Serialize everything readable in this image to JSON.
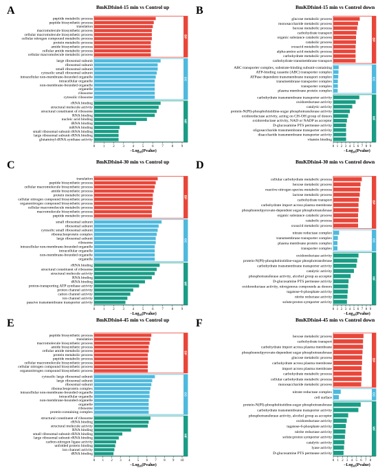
{
  "colors": {
    "BP": "#e8463a",
    "CC": "#4fb9dd",
    "MF": "#1a9c86",
    "axis": "#333333"
  },
  "chart_data": [
    {
      "panel": "A",
      "title": "BmKDfsin4-15 min vs Control up",
      "type": "bar",
      "orientation": "horizontal",
      "xlabel_main": "−Log",
      "xlabel_sub": "10",
      "xlabel_tail": "(Pvalue)",
      "xlim": [
        0,
        9
      ],
      "xticks": [
        0,
        1,
        2,
        3,
        4,
        5,
        6,
        7,
        8,
        9
      ],
      "groups": [
        {
          "name": "BP",
          "terms": [
            "peptide metabolic process",
            "peptide biosynthetic process",
            "translation",
            "macromolecule biosynthetic process",
            "cellular macromolecule biosynthetic process",
            "cellular nitrogen compound metabolic process",
            "protein metabolic process",
            "amide biosynthetic process",
            "cellular amide metabolic process",
            "cellular macromolecule metabolic process"
          ],
          "values": [
            6.3,
            6.1,
            6.0,
            5.9,
            5.9,
            5.9,
            5.8,
            5.8,
            5.8,
            5.8
          ]
        },
        {
          "name": "CC",
          "terms": [
            "large ribosomal subunit",
            "ribosomal subunit",
            "small ribosomal subunit",
            "cytosolic small ribosomal subunit",
            "intracellular non-membrane-bounded organelle",
            "intracellular organelle",
            "non-membrane-bounded organelle",
            "organelle",
            "ribosome",
            "cytosolic ribosome"
          ],
          "values": [
            6.8,
            6.5,
            6.5,
            6.4,
            6.3,
            6.2,
            6.2,
            6.2,
            6.2,
            6.2
          ]
        },
        {
          "name": "MF",
          "terms": [
            "rRNA binding",
            "structural molecule activity",
            "structural constituent of ribosome",
            "RNA binding",
            "nucleic acid binding",
            "tRNA binding",
            "mRNA binding",
            "small ribosomal subunit rRNA binding",
            "large ribosomal subunit rRNA binding",
            "glutaminyl-tRNA synthase activity"
          ],
          "values": [
            6.8,
            6.6,
            6.4,
            6.2,
            5.4,
            4.3,
            2.6,
            2.5,
            2.5,
            2.5
          ]
        }
      ]
    },
    {
      "panel": "B",
      "title": "BmKDfsin4-15 min vs Control down",
      "type": "bar",
      "orientation": "horizontal",
      "xlabel_main": "−Log",
      "xlabel_sub": "10",
      "xlabel_tail": "(Pvalue)",
      "xlim": [
        0,
        9
      ],
      "xticks": [
        0,
        1,
        2,
        3,
        4,
        5,
        6,
        7,
        8,
        9
      ],
      "groups": [
        {
          "name": "BP",
          "terms": [
            "glucose metabolic process",
            "monosaccharide metabolic process",
            "hexose metabolic process",
            "carbohydrate transport",
            "organic substance catabolic process",
            "catabolic process",
            "oxoacid metabolic process",
            "alpha-amino acid metabolic process",
            "carbohydrate metabolic process",
            "carbohydrate transmembrane transport"
          ],
          "values": [
            6.4,
            6.0,
            5.8,
            5.6,
            5.5,
            5.5,
            5.4,
            5.4,
            5.4,
            5.4
          ]
        },
        {
          "name": "CC",
          "terms": [
            "ABC transporter complex, substrate-binding subunit-containing",
            "ATP-binding cassette (ABC) transporter complex",
            "ATPase dependent transmembrane transport complex",
            "transmembrane transporter complex",
            "transporter complex",
            "plasma membrane protein complex"
          ],
          "values": [
            1.3,
            1.25,
            1.2,
            1.1,
            1.1,
            1.05
          ]
        },
        {
          "name": "MF",
          "terms": [
            "carbohydrate transmembrane transporter activity",
            "oxidoreductase activity",
            "catalytic activity",
            "protein-N(PI)-phosphohistidine-sugar phosphotransferase activity",
            "oxidoreductase activity, acting on CH-OH group of donors",
            "oxidoreductase activity, NAD or NADP as acceptor",
            "D-glucosamine PTS permease activity",
            "oligosaccharide transmembrane transporter activity",
            "disaccharide transmembrane transporter activity",
            "vitamin binding"
          ],
          "values": [
            6.3,
            5.4,
            4.6,
            4.0,
            3.6,
            3.3,
            3.1,
            3.1,
            3.1,
            3.1
          ]
        }
      ]
    },
    {
      "panel": "C",
      "title": "BmKDfsin4-30 min vs Control up",
      "type": "bar",
      "orientation": "horizontal",
      "xlabel_main": "−Log",
      "xlabel_sub": "10",
      "xlabel_tail": "(Pvalue)",
      "xlim": [
        0,
        9
      ],
      "xticks": [
        0,
        1,
        2,
        3,
        4,
        5,
        6,
        7,
        8,
        9
      ],
      "groups": [
        {
          "name": "BP",
          "terms": [
            "translation",
            "peptide biosynthetic process",
            "cellular macromolecule biosynthetic process",
            "amide biosynthetic process",
            "protein metabolic process",
            "cellular nitrogen compound biosynthetic process",
            "organonitrogen compound biosynthetic process",
            "cellular macromolecule metabolic process",
            "macromolecule biosynthetic process",
            "peptide metabolic process"
          ],
          "values": [
            6.5,
            6.3,
            6.2,
            6.1,
            6.0,
            6.0,
            6.0,
            5.9,
            5.9,
            5.9
          ]
        },
        {
          "name": "CC",
          "terms": [
            "small ribosomal subunit",
            "ribosomal subunit",
            "cytosolic small ribosomal subunit",
            "ribonucleoprotein complex",
            "large ribosomal subunit",
            "ribosome",
            "intracellular non-membrane-bounded organelle",
            "intracellular organelle",
            "non-membrane-bounded organelle",
            "organelle"
          ],
          "values": [
            6.9,
            6.6,
            6.5,
            6.4,
            6.3,
            6.3,
            6.2,
            6.2,
            6.2,
            6.2
          ]
        },
        {
          "name": "MF",
          "terms": [
            "rRNA binding",
            "structural constituent of ribosome",
            "structural molecule activity",
            "RNA binding",
            "tRNA binding",
            "proton-transporting ATP synthase activity",
            "proton channel activity",
            "cation channel activity",
            "ion channel activity",
            "passive transmembrane transporter activity"
          ],
          "values": [
            6.7,
            6.4,
            6.2,
            5.9,
            5.2,
            4.6,
            4.0,
            3.7,
            3.4,
            3.2
          ]
        }
      ]
    },
    {
      "panel": "D",
      "title": "BmKDfsin4-30 min vs Control down",
      "type": "bar",
      "orientation": "horizontal",
      "xlabel_main": "−Log",
      "xlabel_sub": "10",
      "xlabel_tail": "(Pvalue)",
      "xlim": [
        0,
        9
      ],
      "xticks": [
        0,
        1,
        2,
        3,
        4,
        5,
        6,
        7,
        8,
        9
      ],
      "groups": [
        {
          "name": "BP",
          "terms": [
            "cellular carbohydrate metabolic process",
            "hexose metabolic process",
            "reactive nitrogen species metabolic process",
            "lactose metabolic process",
            "carbohydrate transport",
            "carbohydrate import across plasma membrane",
            "phosphoenolpyruvate-dependent sugar phosphotransferase",
            "organic substance catabolic process",
            "catabolic process",
            "oxoacid metabolic process"
          ],
          "values": [
            6.9,
            6.6,
            6.5,
            6.4,
            6.2,
            6.1,
            6.1,
            6.0,
            6.0,
            6.0
          ]
        },
        {
          "name": "CC",
          "terms": [
            "nitrate reductase complex",
            "transmembrane transporter complex",
            "plasma membrane protein complex",
            "transporter complex"
          ],
          "values": [
            1.4,
            1.1,
            1.0,
            1.0
          ]
        },
        {
          "name": "MF",
          "terms": [
            "oxidoreductase activity",
            "protein-N(PI)-phosphohistidine-sugar phosphotransferase",
            "carbohydrate transmembrane transporter activity",
            "catalytic activity",
            "phosphotransferase activity, alcohol group as acceptor",
            "D-glucosamine PTS permease activity",
            "oxidoreductase activity, nitrogenous compounds as donors",
            "tagatose-6-phosphate activity",
            "nitrite reductase activity",
            "solute:proton symporter activity"
          ],
          "values": [
            6.1,
            5.8,
            5.6,
            5.0,
            4.2,
            3.7,
            3.6,
            3.5,
            3.4,
            3.3
          ]
        }
      ]
    },
    {
      "panel": "E",
      "title": "BmKDfsin4-45 min vs Control up",
      "type": "bar",
      "orientation": "horizontal",
      "xlabel_main": "−Log",
      "xlabel_sub": "10",
      "xlabel_tail": "(Pvalue)",
      "xlim": [
        0,
        10
      ],
      "xticks": [
        0,
        1,
        2,
        3,
        4,
        5,
        6,
        7,
        8,
        9,
        10
      ],
      "groups": [
        {
          "name": "BP",
          "terms": [
            "peptide biosynthetic process",
            "translation",
            "macromolecule biosynthetic process",
            "amide biosynthetic process",
            "cellular amide metabolic process",
            "protein metabolic process",
            "peptide metabolic process",
            "cellular macromolecule biosynthetic process",
            "cellular nitrogen compound biosynthetic process",
            "organonitrogen compound biosynthetic process"
          ],
          "values": [
            6.5,
            6.4,
            6.3,
            6.2,
            6.2,
            6.1,
            6.1,
            6.1,
            6.1,
            6.1
          ]
        },
        {
          "name": "CC",
          "terms": [
            "cytosolic large ribosomal subunit",
            "large ribosomal subunit",
            "ribosomal subunit",
            "ribonucleoprotein complex",
            "intracellular non-membrane-bounded organelle",
            "intracellular organelle",
            "non-membrane-bounded organelle",
            "organelle",
            "ribosome",
            "protein-containing complex"
          ],
          "values": [
            6.9,
            6.6,
            6.5,
            6.4,
            6.3,
            6.3,
            6.2,
            6.2,
            6.2,
            6.2
          ]
        },
        {
          "name": "MF",
          "terms": [
            "structural constituent of ribosome",
            "rRNA binding",
            "structural molecule activity",
            "RNA binding",
            "small ribosomal subunit rRNA binding",
            "large ribosomal subunit rRNA binding",
            "carbon-nitrogen ligase activity",
            "unfolded protein binding",
            "ion channel activity",
            "tRNA binding"
          ],
          "values": [
            6.4,
            6.2,
            6.1,
            4.2,
            3.2,
            2.8,
            2.5,
            2.4,
            2.3,
            2.2
          ]
        }
      ]
    },
    {
      "panel": "F",
      "title": "BmKDfsin4-45 min vs Control down",
      "type": "bar",
      "orientation": "horizontal",
      "xlabel_main": "−Log",
      "xlabel_sub": "10",
      "xlabel_tail": "(Pvalue)",
      "xlim": [
        0,
        8
      ],
      "xticks": [
        0,
        1,
        2,
        3,
        4,
        5,
        6,
        7,
        8
      ],
      "groups": [
        {
          "name": "BP",
          "terms": [
            "hexose metabolic process",
            "carbohydrate transport",
            "carbohydrate import across plasma membrane",
            "phosphoenolpyruvate-dependent sugar phosphotransferase",
            "glucose metabolic process",
            "carbohydrate across plasma membrane",
            "import across plasma membrane",
            "carbohydrate metabolic process",
            "cellular carbohydrate metabolic process",
            "monosaccharide metabolic process"
          ],
          "values": [
            6.5,
            6.4,
            6.4,
            6.3,
            6.2,
            6.2,
            6.1,
            6.1,
            6.1,
            6.0
          ]
        },
        {
          "name": "CC",
          "terms": [
            "nitrate reductase complex",
            "cell surface"
          ],
          "values": [
            1.6,
            1.2
          ]
        },
        {
          "name": "MF",
          "terms": [
            "protein-N(PI)-phosphohistidine-sugar phosphotransferase",
            "carbohydrate transmembrane transporter activity",
            "phosphotransferase activity, alcohol group as acceptor",
            "oxidoreductase activity",
            "tagatose-6-phosphate activity",
            "nitrite reductase activity",
            "solute:proton symporter activity",
            "catalytic activity",
            "lyase activity",
            "D-glucosamine PTS permease activity"
          ],
          "values": [
            5.9,
            5.4,
            3.2,
            2.9,
            2.7,
            2.6,
            2.5,
            2.4,
            2.3,
            2.2
          ]
        }
      ]
    }
  ]
}
